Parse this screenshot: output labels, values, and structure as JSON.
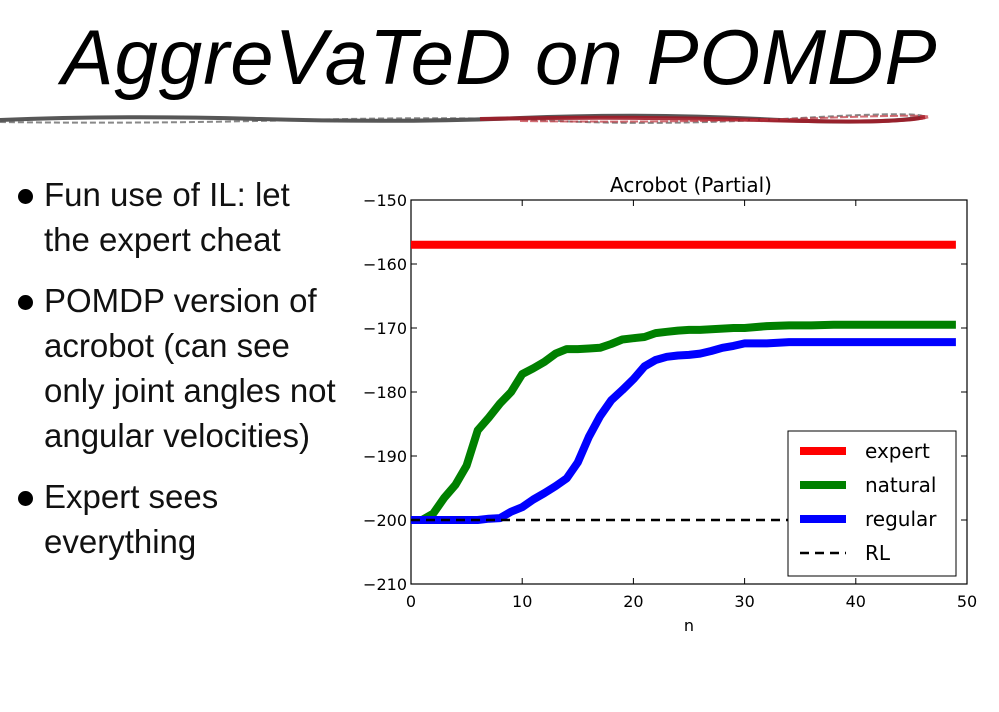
{
  "slide": {
    "title": "AggreVaTeD on POMDP",
    "bullets": [
      "Fun use of IL: let the expert cheat",
      "POMDP version of acrobot (can see only joint angles not angular velocities)",
      "Expert sees everything"
    ]
  },
  "chart_data": {
    "type": "line",
    "title": "Acrobot (Partial)",
    "xlabel": "n",
    "ylabel": "",
    "xlim": [
      0,
      50
    ],
    "ylim": [
      -210,
      -150
    ],
    "xticks": [
      "0",
      "10",
      "20",
      "30",
      "40",
      "50"
    ],
    "yticks": [
      "−150",
      "−160",
      "−170",
      "−180",
      "−190",
      "−200",
      "−210"
    ],
    "legend_position": "lower-right",
    "grid": false,
    "series": [
      {
        "name": "expert",
        "color": "#ff0000",
        "style": "solid",
        "x": [
          0,
          49
        ],
        "y": [
          -157,
          -157
        ]
      },
      {
        "name": "natural",
        "color": "#008000",
        "style": "solid",
        "x": [
          0,
          1,
          2,
          3,
          4,
          5,
          6,
          7,
          8,
          9,
          10,
          11,
          12,
          13,
          14,
          15,
          16,
          17,
          18,
          19,
          20,
          21,
          22,
          23,
          24,
          25,
          26,
          27,
          28,
          29,
          30,
          32,
          34,
          36,
          38,
          40,
          42,
          45,
          49
        ],
        "y": [
          -200,
          -200,
          -199,
          -196.5,
          -194.5,
          -191.5,
          -186,
          -184,
          -181.8,
          -180,
          -177.2,
          -176.3,
          -175.3,
          -174,
          -173.3,
          -173.3,
          -173.2,
          -173.1,
          -172.5,
          -171.8,
          -171.6,
          -171.4,
          -170.8,
          -170.6,
          -170.4,
          -170.3,
          -170.3,
          -170.2,
          -170.1,
          -170.0,
          -170.0,
          -169.7,
          -169.6,
          -169.6,
          -169.5,
          -169.5,
          -169.5,
          -169.5,
          -169.5
        ]
      },
      {
        "name": "regular",
        "color": "#0000ff",
        "style": "solid",
        "x": [
          0,
          2,
          4,
          6,
          7,
          8,
          9,
          10,
          11,
          12,
          13,
          14,
          15,
          16,
          17,
          18,
          19,
          20,
          21,
          22,
          23,
          24,
          25,
          26,
          27,
          28,
          29,
          30,
          31,
          32,
          33,
          34,
          36,
          38,
          40,
          42,
          45,
          49
        ],
        "y": [
          -200,
          -200,
          -200,
          -200,
          -199.8,
          -199.7,
          -198.7,
          -198,
          -196.8,
          -195.8,
          -194.7,
          -193.5,
          -191,
          -187,
          -183.8,
          -181.3,
          -179.7,
          -178,
          -176,
          -175,
          -174.5,
          -174.3,
          -174.2,
          -174,
          -173.6,
          -173.1,
          -172.8,
          -172.4,
          -172.4,
          -172.4,
          -172.3,
          -172.2,
          -172.2,
          -172.2,
          -172.2,
          -172.2,
          -172.2,
          -172.2
        ]
      },
      {
        "name": "RL",
        "color": "#000000",
        "style": "dashed",
        "x": [
          0,
          49
        ],
        "y": [
          -200,
          -200
        ]
      }
    ]
  }
}
